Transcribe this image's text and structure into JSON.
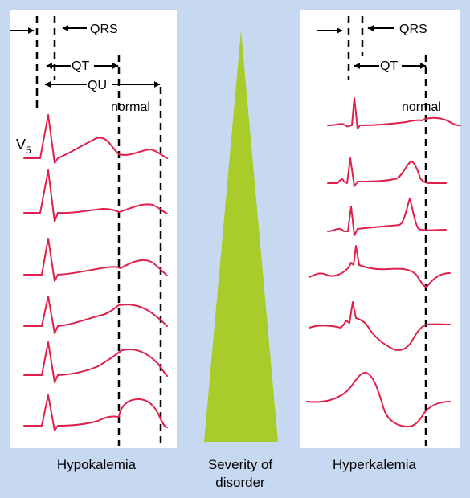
{
  "background_color": "#c6d9f1",
  "trace_color": "#e0204a",
  "triangle_color": "#a9cc2a",
  "left_panel": {
    "caption": "Hypokalemia",
    "label_qrs": "QRS",
    "label_qt": "QT",
    "label_qu": "QU",
    "label_normal": "normal",
    "lead_label": "V",
    "lead_subscript": "5"
  },
  "center": {
    "caption_line1": "Severity of",
    "caption_line2": "disorder"
  },
  "right_panel": {
    "caption": "Hyperkalemia",
    "label_qrs": "QRS",
    "label_qt": "QT",
    "label_normal": "normal"
  }
}
